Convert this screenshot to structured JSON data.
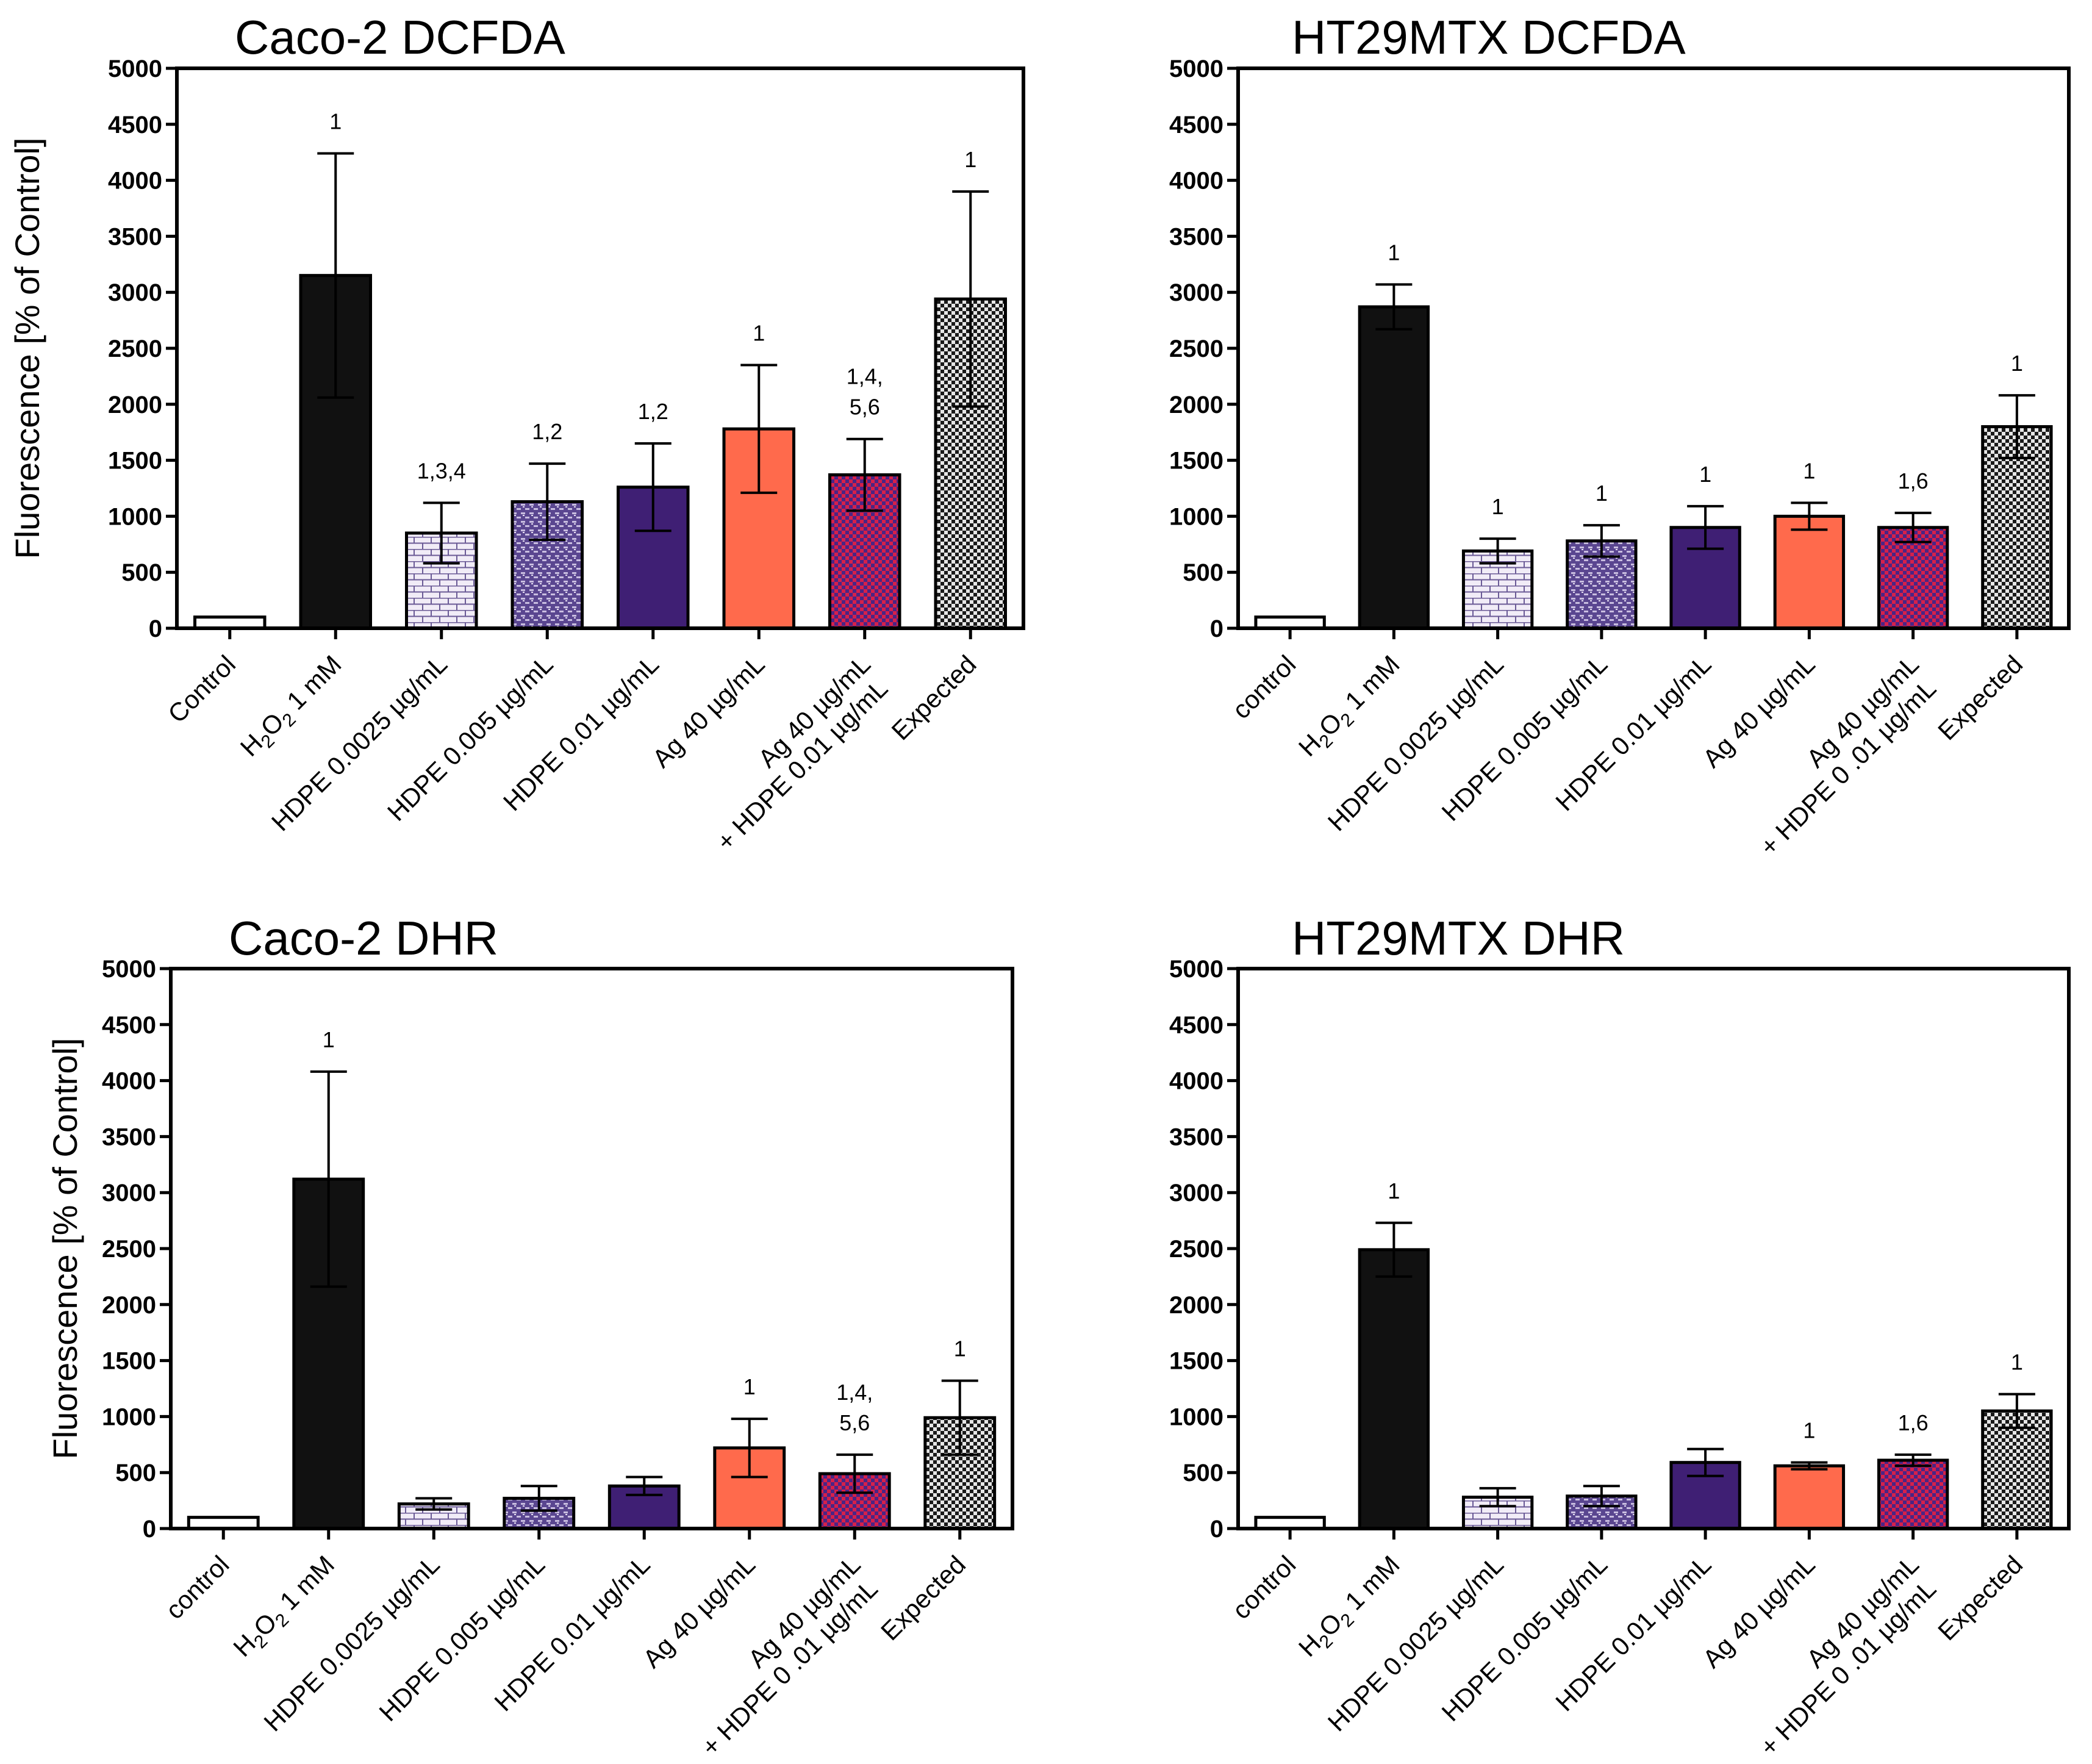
{
  "figure": {
    "colors": {
      "control": "#ffffff",
      "h2o2": "#111111",
      "hdpe_low": "#ece6f4",
      "hdpe_mid": "#8a7cb0",
      "hdpe_high": "#3f1f74",
      "ag": "#ff6a4c",
      "ag_hdpe": "#c81e4a",
      "expected": "#b3b3b3"
    }
  },
  "chart_data": [
    {
      "id": "caco2-dcfda",
      "type": "bar",
      "title": "Caco-2 DCFDA",
      "ylabel": "Fluorescence [% of Control]",
      "ylim": [
        0,
        5000
      ],
      "yticks": [
        "0",
        "500",
        "1000",
        "1500",
        "2000",
        "2500",
        "3000",
        "3500",
        "4000",
        "4500",
        "5000"
      ],
      "categories": [
        {
          "label": "Control"
        },
        {
          "label": "H",
          "sub": "2",
          "label2": "O",
          "sub2": "2",
          "label3": " 1 mM"
        },
        {
          "label": "HDPE 0.0025 µg/mL"
        },
        {
          "label": "HDPE 0.005 µg/mL"
        },
        {
          "label": "HDPE 0.01 µg/mL"
        },
        {
          "label": "Ag 40 µg/mL"
        },
        {
          "label": "Ag 40 µg/mL",
          "line2": "+ HDPE 0.01 µg/mL"
        },
        {
          "label": "Expected"
        }
      ],
      "values": [
        100,
        3150,
        850,
        1130,
        1260,
        1780,
        1370,
        2940
      ],
      "errors": [
        0,
        1090,
        270,
        340,
        390,
        570,
        320,
        960
      ],
      "annotations": [
        [],
        [
          "1"
        ],
        [
          "1,3,4"
        ],
        [
          "1,2"
        ],
        [
          "1,2"
        ],
        [
          "1"
        ],
        [
          "1,4,",
          "5,6"
        ],
        [
          "1"
        ]
      ]
    },
    {
      "id": "ht29mtx-dcfda",
      "type": "bar",
      "title": "HT29MTX DCFDA",
      "ylabel": "",
      "ylim": [
        0,
        5000
      ],
      "yticks": [
        "0",
        "500",
        "1000",
        "1500",
        "2000",
        "2500",
        "3000",
        "3500",
        "4000",
        "4500",
        "5000"
      ],
      "categories": [
        {
          "label": "control"
        },
        {
          "label": "H",
          "sub": "2",
          "label2": "O",
          "sub2": "2",
          "label3": " 1 mM"
        },
        {
          "label": "HDPE 0.0025 µg/mL"
        },
        {
          "label": "HDPE 0.005 µg/mL"
        },
        {
          "label": "HDPE 0.01 µg/mL"
        },
        {
          "label": "Ag 40 µg/mL"
        },
        {
          "label": "Ag 40 µg/mL",
          "line2": "+ HDPE 0 .01 µg/mL"
        },
        {
          "label": "Expected"
        }
      ],
      "values": [
        100,
        2870,
        690,
        780,
        900,
        1000,
        900,
        1800
      ],
      "errors": [
        0,
        200,
        110,
        140,
        190,
        120,
        130,
        280
      ],
      "annotations": [
        [],
        [
          "1"
        ],
        [
          "1"
        ],
        [
          "1"
        ],
        [
          "1"
        ],
        [
          "1"
        ],
        [
          "1,6"
        ],
        [
          "1"
        ]
      ]
    },
    {
      "id": "caco2-dhr",
      "type": "bar",
      "title": "Caco-2 DHR",
      "ylabel": "Fluorescence [% of Control]",
      "ylim": [
        0,
        5000
      ],
      "yticks": [
        "0",
        "500",
        "1000",
        "1500",
        "2000",
        "2500",
        "3000",
        "3500",
        "4000",
        "4500",
        "5000"
      ],
      "categories": [
        {
          "label": "control"
        },
        {
          "label": "H",
          "sub": "2",
          "label2": "O",
          "sub2": "2",
          "label3": " 1 mM"
        },
        {
          "label": "HDPE 0.0025 µg/mL"
        },
        {
          "label": "HDPE 0.005 µg/mL"
        },
        {
          "label": "HDPE 0.01 µg/mL"
        },
        {
          "label": "Ag 40 µg/mL"
        },
        {
          "label": "Ag 40 µg/mL",
          "line2": "+ HDPE 0 .01 µg/mL"
        },
        {
          "label": "Expected"
        }
      ],
      "values": [
        100,
        3120,
        220,
        270,
        380,
        720,
        490,
        990
      ],
      "errors": [
        0,
        960,
        50,
        110,
        80,
        260,
        170,
        330
      ],
      "annotations": [
        [],
        [
          "1"
        ],
        [],
        [],
        [],
        [
          "1"
        ],
        [
          "1,4,",
          "5,6"
        ],
        [
          "1"
        ]
      ]
    },
    {
      "id": "ht29mtx-dhr",
      "type": "bar",
      "title": "HT29MTX DHR",
      "ylabel": "",
      "ylim": [
        0,
        5000
      ],
      "yticks": [
        "0",
        "500",
        "1000",
        "1500",
        "2000",
        "2500",
        "3000",
        "3500",
        "4000",
        "4500",
        "5000"
      ],
      "categories": [
        {
          "label": "control"
        },
        {
          "label": "H",
          "sub": "2",
          "label2": "O",
          "sub2": "2",
          "label3": " 1 mM"
        },
        {
          "label": "HDPE 0.0025 µg/mL"
        },
        {
          "label": "HDPE 0.005 µg/mL"
        },
        {
          "label": "HDPE 0.01 µg/mL"
        },
        {
          "label": "Ag 40 µg/mL"
        },
        {
          "label": "Ag 40 µg/mL",
          "line2": "+ HDPE 0 .01 µg/mL"
        },
        {
          "label": "Expected"
        }
      ],
      "values": [
        100,
        2490,
        280,
        290,
        590,
        560,
        610,
        1050
      ],
      "errors": [
        0,
        240,
        80,
        90,
        120,
        30,
        50,
        150
      ],
      "annotations": [
        [],
        [
          "1"
        ],
        [],
        [],
        [],
        [
          "1"
        ],
        [
          "1,6"
        ],
        [
          "1"
        ]
      ]
    }
  ]
}
